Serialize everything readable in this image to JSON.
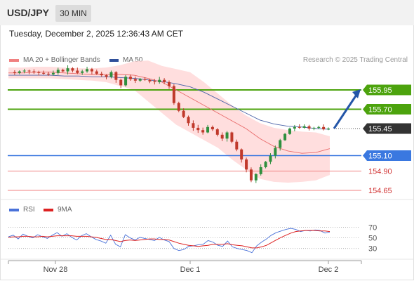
{
  "header": {
    "symbol": "USD/JPY",
    "timeframe": "30 MIN",
    "datetime": "Tuesday, December 2, 2025 12:36:43 AM CET"
  },
  "legend": {
    "ma20": "MA 20 + Bollinger Bands",
    "ma50": "MA 50",
    "copyright": "Research © 2025 Trading Central",
    "rsi": "RSI",
    "ma9": "9MA"
  },
  "colors": {
    "green": "#4ca30d",
    "blue": "#3a78e0",
    "red": "#f08080",
    "bollinger_fill": "#ffd6d6",
    "ma20_line": "#e96b6b",
    "ma50_line": "#4c64a8",
    "candle_up": "#2f8f3e",
    "candle_down": "#c0392b",
    "price_tag": "#333333",
    "arrow": "#2456a8",
    "rsi_line": "#4a72d9",
    "rsi_ma_line": "#dd2222"
  },
  "chart_data": {
    "type": "candlestick",
    "price_range": [
      154.55,
      156.35
    ],
    "levels": [
      {
        "label": "155.95",
        "value": 155.95,
        "kind": "resistance",
        "tag_style": "green"
      },
      {
        "label": "155.70",
        "value": 155.7,
        "kind": "resistance",
        "tag_style": "green"
      },
      {
        "label": "155.45",
        "value": 155.45,
        "kind": "last_price",
        "tag_style": "dark"
      },
      {
        "label": "155.10",
        "value": 155.1,
        "kind": "pivot",
        "tag_style": "blue"
      },
      {
        "label": "154.90",
        "value": 154.9,
        "kind": "support",
        "tag_style": "red_text"
      },
      {
        "label": "154.65",
        "value": 154.65,
        "kind": "support",
        "tag_style": "red_text"
      }
    ],
    "x_labels": [
      "Nov 28",
      "Dec 1",
      "Dec 2"
    ],
    "forecast_arrow": {
      "from": 155.45,
      "to": 155.95
    },
    "close_path": [
      156.18,
      156.17,
      156.19,
      156.2,
      156.19,
      156.18,
      156.17,
      156.16,
      156.15,
      156.17,
      156.21,
      156.19,
      156.23,
      156.2,
      156.17,
      156.19,
      156.22,
      156.19,
      156.16,
      156.14,
      156.12,
      156.18,
      156.08,
      156.01,
      156.12,
      156.09,
      156.07,
      156.09,
      156.08,
      156.06,
      156.05,
      156.08,
      156.05,
      156.0,
      155.78,
      155.68,
      155.6,
      155.52,
      155.46,
      155.43,
      155.4,
      155.47,
      155.44,
      155.37,
      155.32,
      155.4,
      155.28,
      155.18,
      155.05,
      154.92,
      154.78,
      154.86,
      154.95,
      155.02,
      155.1,
      155.2,
      155.3,
      155.38,
      155.45,
      155.47,
      155.46,
      155.48,
      155.45,
      155.46,
      155.47,
      155.44,
      155.45
    ],
    "bollinger": {
      "upper": [
        156.24,
        156.24,
        156.25,
        156.25,
        156.24,
        156.23,
        156.23,
        156.24,
        156.27,
        156.32,
        156.33,
        156.26,
        156.22,
        156.18,
        156.05,
        155.9,
        155.75,
        155.62,
        155.52,
        155.46,
        155.43,
        155.41,
        155.4,
        155.35
      ],
      "lower": [
        156.1,
        156.1,
        156.1,
        156.1,
        156.09,
        156.08,
        156.07,
        156.05,
        156.0,
        155.95,
        155.8,
        155.65,
        155.5,
        155.4,
        155.3,
        155.2,
        155.05,
        154.92,
        154.8,
        154.76,
        154.75,
        154.76,
        154.78,
        154.85
      ]
    },
    "ma20": [
      156.17,
      156.17,
      156.18,
      156.18,
      156.17,
      156.16,
      156.15,
      156.15,
      156.15,
      156.14,
      156.1,
      156.05,
      155.95,
      155.85,
      155.75,
      155.65,
      155.55,
      155.45,
      155.32,
      155.22,
      155.16,
      155.13,
      155.14,
      155.19
    ],
    "ma50": [
      156.14,
      156.14,
      156.14,
      156.14,
      156.13,
      156.13,
      156.12,
      156.12,
      156.11,
      156.1,
      156.08,
      156.06,
      156.03,
      155.99,
      155.92,
      155.83,
      155.74,
      155.65,
      155.56,
      155.51,
      155.48,
      155.47,
      155.45,
      155.44
    ],
    "rsi": {
      "levels": [
        70,
        50,
        30
      ],
      "range": [
        15,
        80
      ],
      "values": [
        52,
        55,
        48,
        57,
        53,
        50,
        56,
        52,
        49,
        55,
        60,
        53,
        58,
        51,
        46,
        54,
        58,
        52,
        47,
        44,
        40,
        55,
        38,
        33,
        56,
        50,
        46,
        51,
        49,
        47,
        45,
        51,
        46,
        43,
        30,
        26,
        28,
        34,
        35,
        37,
        38,
        45,
        42,
        36,
        34,
        44,
        33,
        30,
        28,
        26,
        22,
        35,
        42,
        48,
        55,
        60,
        63,
        66,
        68,
        66,
        62,
        64,
        63,
        65,
        64,
        59,
        61
      ],
      "ma": [
        51,
        52,
        52,
        53,
        53,
        52,
        52,
        53,
        52,
        53,
        54,
        54,
        54,
        54,
        53,
        53,
        53,
        52,
        51,
        49,
        47,
        47,
        45,
        43,
        45,
        46,
        45,
        46,
        47,
        48,
        48,
        47,
        47,
        46,
        43,
        40,
        38,
        36,
        35,
        34,
        35,
        36,
        38,
        38,
        38,
        39,
        37,
        36,
        35,
        33,
        31,
        31,
        33,
        36,
        41,
        46,
        51,
        55,
        59,
        62,
        63,
        64,
        64,
        64,
        63,
        63,
        62
      ]
    }
  }
}
